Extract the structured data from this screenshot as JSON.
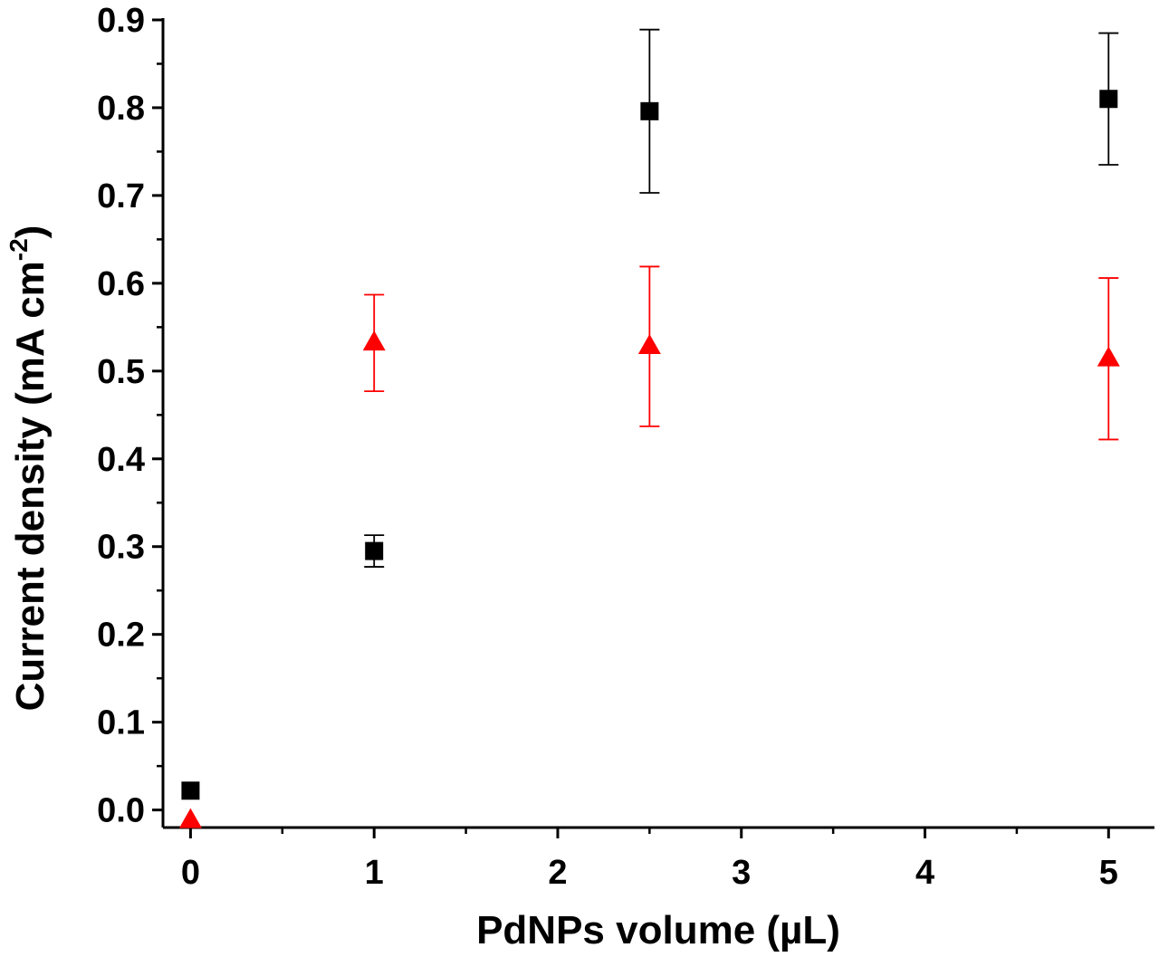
{
  "chart_data": {
    "type": "scatter",
    "xlabel": "PdNPs volume (µL)",
    "ylabel": "Current density (mA cm",
    "ylabel_sup": "-2",
    "ylabel_close": ")",
    "xlim": [
      -0.15,
      5.25
    ],
    "ylim": [
      -0.02,
      0.9
    ],
    "x_ticks": [
      0,
      1,
      2,
      3,
      4,
      5
    ],
    "x_tick_labels": [
      "0",
      "1",
      "2",
      "3",
      "4",
      "5"
    ],
    "y_ticks": [
      0.0,
      0.1,
      0.2,
      0.3,
      0.4,
      0.5,
      0.6,
      0.7,
      0.8,
      0.9
    ],
    "y_tick_labels": [
      "0.0",
      "0.1",
      "0.2",
      "0.3",
      "0.4",
      "0.5",
      "0.6",
      "0.7",
      "0.8",
      "0.9"
    ],
    "grid": false,
    "legend": "none",
    "series": [
      {
        "marker": "square",
        "color": "#000000",
        "x": [
          0,
          1,
          2.5,
          5
        ],
        "y": [
          0.022,
          0.295,
          0.796,
          0.81
        ],
        "err": [
          0,
          0.018,
          0.093,
          0.075
        ]
      },
      {
        "marker": "triangle",
        "color": "#ff0000",
        "x": [
          0,
          1,
          2.5,
          5
        ],
        "y": [
          -0.012,
          0.532,
          0.528,
          0.514
        ],
        "err": [
          0,
          0.055,
          0.091,
          0.092
        ]
      }
    ]
  }
}
